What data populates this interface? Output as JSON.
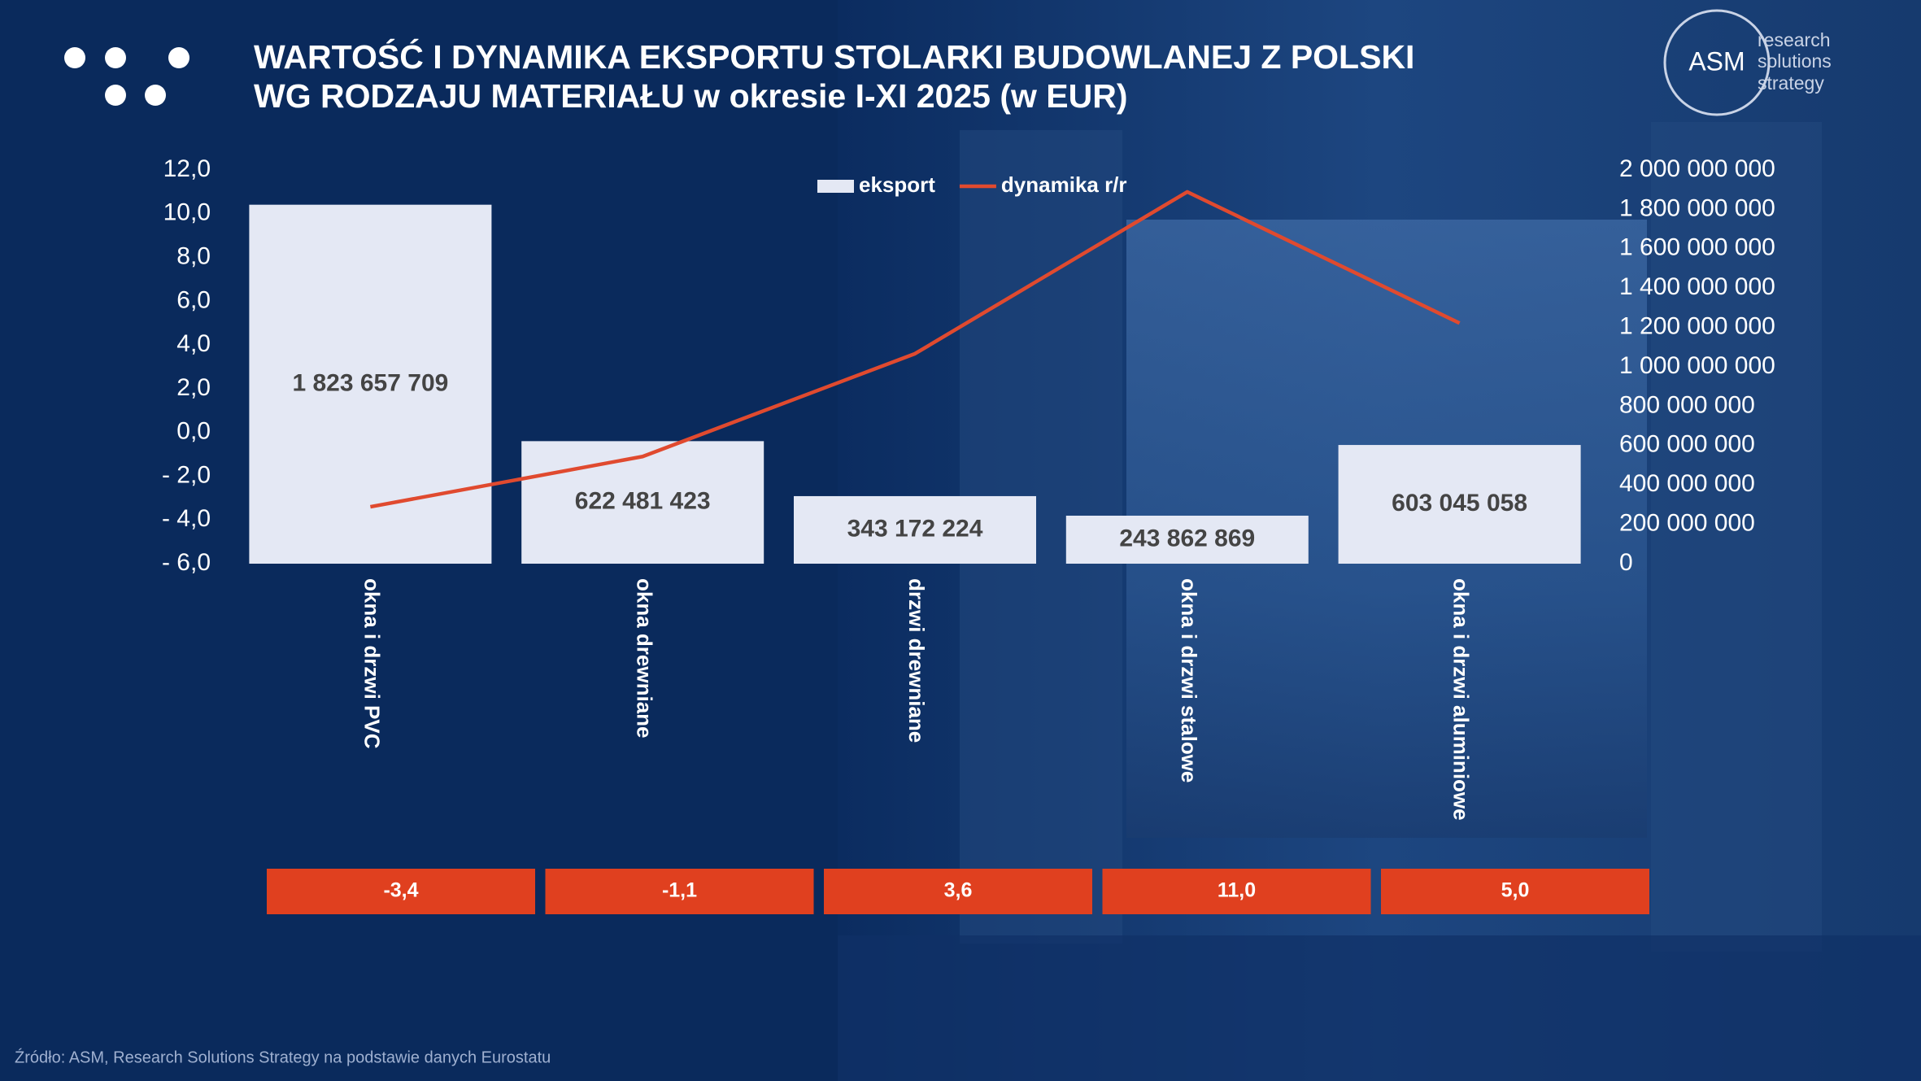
{
  "chart_data": {
    "type": "bar",
    "title": [
      "WARTOŚĆ I DYNAMIKA EKSPORTU STOLARKI BUDOWLANEJ Z POLSKI",
      "WG RODZAJU MATERIAŁU w okresie I-XI 2025 (w EUR)"
    ],
    "categories": [
      "okna i drzwi PVC",
      "okna drewniane",
      "drzwi drewniane",
      "okna i drzwi stalowe",
      "okna i drzwi aluminiowe"
    ],
    "series": [
      {
        "name": "eksport",
        "type": "bar",
        "axis": "y2",
        "color": "#e4e8f4",
        "values": [
          1823657709,
          622481423,
          343172224,
          243862869,
          603045058
        ],
        "value_labels": [
          "1 823 657 709",
          "622 481 423",
          "343 172 224",
          "243 862 869",
          "603 045 058"
        ]
      },
      {
        "name": "dynamika r/r",
        "type": "line",
        "axis": "y",
        "color": "#e04a2f",
        "values": [
          -3.4,
          -1.1,
          3.6,
          11.0,
          5.0
        ],
        "value_labels": [
          "-3,4",
          "-1,1",
          "3,6",
          "11,0",
          "5,0"
        ]
      }
    ],
    "ylim": [
      -6,
      12
    ],
    "yticks": [
      {
        "value": 12,
        "label": "12,0"
      },
      {
        "value": 10,
        "label": "10,0"
      },
      {
        "value": 8,
        "label": "8,0"
      },
      {
        "value": 6,
        "label": "6,0"
      },
      {
        "value": 4,
        "label": "4,0"
      },
      {
        "value": 2,
        "label": "2,0"
      },
      {
        "value": 0,
        "label": "0,0"
      },
      {
        "value": -2,
        "label": "- 2,0"
      },
      {
        "value": -4,
        "label": "- 4,0"
      },
      {
        "value": -6,
        "label": "- 6,0"
      }
    ],
    "y2lim": [
      0,
      2000000000
    ],
    "y2ticks": [
      {
        "value": 2000000000,
        "label": "2 000 000 000"
      },
      {
        "value": 1800000000,
        "label": "1 800 000 000"
      },
      {
        "value": 1600000000,
        "label": "1 600 000 000"
      },
      {
        "value": 1400000000,
        "label": "1 400 000 000"
      },
      {
        "value": 1200000000,
        "label": "1 200 000 000"
      },
      {
        "value": 1000000000,
        "label": "1 000 000 000"
      },
      {
        "value": 800000000,
        "label": "800 000 000"
      },
      {
        "value": 600000000,
        "label": "600 000 000"
      },
      {
        "value": 400000000,
        "label": "400 000 000"
      },
      {
        "value": 200000000,
        "label": "200 000 000"
      },
      0
    ],
    "grid": false,
    "legend": "top"
  },
  "logo": {
    "text": "ASM",
    "tagline": [
      "research",
      "solutions",
      "strategy"
    ]
  },
  "source": "Źródło: ASM, Research Solutions Strategy  na podstawie danych Eurostatu"
}
